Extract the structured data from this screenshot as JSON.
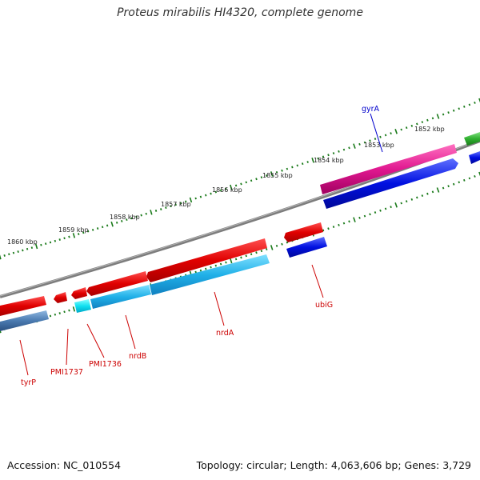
{
  "title": "Proteus mirabilis HI4320, complete genome",
  "footer": {
    "accession": "Accession: NC_010554",
    "summary": "Topology: circular; Length: 4,063,606 bp; Genes: 3,729"
  },
  "colors": {
    "backbone": "#7a7a7a",
    "tick": "#1a7a1a",
    "forward_gene": "#e00000",
    "reverse_gene": "#20a8e0",
    "dark_blue_gene": "#0010e0",
    "magenta_gene": "#e01890",
    "green_gene": "#30b030",
    "steel_gene": "#4a7ab0",
    "label_red": "#cc0000",
    "label_blue": "#0000cc"
  },
  "scale": {
    "unit": "kbp",
    "labels": [
      {
        "text": "1852 kbp",
        "kbp": 1852
      },
      {
        "text": "1853 kbp",
        "kbp": 1853
      },
      {
        "text": "1854 kbp",
        "kbp": 1854
      },
      {
        "text": "1855 kbp",
        "kbp": 1855
      },
      {
        "text": "1856 kbp",
        "kbp": 1856
      },
      {
        "text": "1857 kbp",
        "kbp": 1857
      },
      {
        "text": "1858 kbp",
        "kbp": 1858
      },
      {
        "text": "1859 kbp",
        "kbp": 1859
      },
      {
        "text": "1860 kbp",
        "kbp": 1860
      }
    ]
  },
  "gene_labels": [
    {
      "text": "gyrA",
      "color": "#0000cc"
    },
    {
      "text": "ubiG",
      "color": "#cc0000"
    },
    {
      "text": "nrdA",
      "color": "#cc0000"
    },
    {
      "text": "nrdB",
      "color": "#cc0000"
    },
    {
      "text": "PMI1736",
      "color": "#cc0000"
    },
    {
      "text": "PMI1737",
      "color": "#cc0000"
    },
    {
      "text": "tyrP",
      "color": "#cc0000"
    }
  ]
}
